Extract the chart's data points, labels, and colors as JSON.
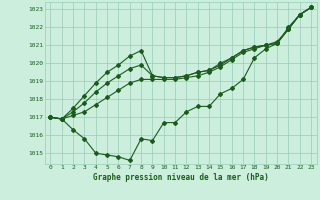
{
  "title": "Graphe pression niveau de la mer (hPa)",
  "background_color": "#cceedd",
  "grid_color": "#99ccbb",
  "line_color": "#1a5c1a",
  "ylim": [
    1014.4,
    1023.4
  ],
  "xlim": [
    -0.5,
    23.5
  ],
  "yticks": [
    1015,
    1016,
    1017,
    1018,
    1019,
    1020,
    1021,
    1022,
    1023
  ],
  "xticks": [
    0,
    1,
    2,
    3,
    4,
    5,
    6,
    7,
    8,
    9,
    10,
    11,
    12,
    13,
    14,
    15,
    16,
    17,
    18,
    19,
    20,
    21,
    22,
    23
  ],
  "series": [
    [
      1017.0,
      1016.9,
      1016.3,
      1015.8,
      1015.0,
      1014.9,
      1014.8,
      1014.6,
      1015.8,
      1015.7,
      1016.7,
      1016.7,
      1017.3,
      1017.6,
      1017.6,
      1018.3,
      1018.6,
      1019.1,
      1020.3,
      1020.8,
      1021.1,
      1022.0,
      1022.7,
      1023.1
    ],
    [
      1017.0,
      1016.9,
      1017.5,
      1018.2,
      1018.9,
      1019.5,
      1019.9,
      1020.4,
      1020.7,
      1019.3,
      1019.2,
      1019.2,
      1019.3,
      1019.5,
      1019.6,
      1020.0,
      1020.3,
      1020.7,
      1020.9,
      1021.0,
      1021.2,
      1021.9,
      1022.7,
      1023.1
    ],
    [
      1017.0,
      1016.9,
      1017.3,
      1017.8,
      1018.4,
      1018.9,
      1019.3,
      1019.7,
      1019.9,
      1019.3,
      1019.2,
      1019.2,
      1019.3,
      1019.5,
      1019.6,
      1019.9,
      1020.3,
      1020.7,
      1020.9,
      1021.0,
      1021.1,
      1021.9,
      1022.7,
      1023.1
    ],
    [
      1017.0,
      1016.9,
      1017.1,
      1017.3,
      1017.7,
      1018.1,
      1018.5,
      1018.9,
      1019.1,
      1019.1,
      1019.1,
      1019.1,
      1019.2,
      1019.3,
      1019.5,
      1019.8,
      1020.2,
      1020.6,
      1020.8,
      1021.0,
      1021.1,
      1021.9,
      1022.7,
      1023.1
    ]
  ]
}
